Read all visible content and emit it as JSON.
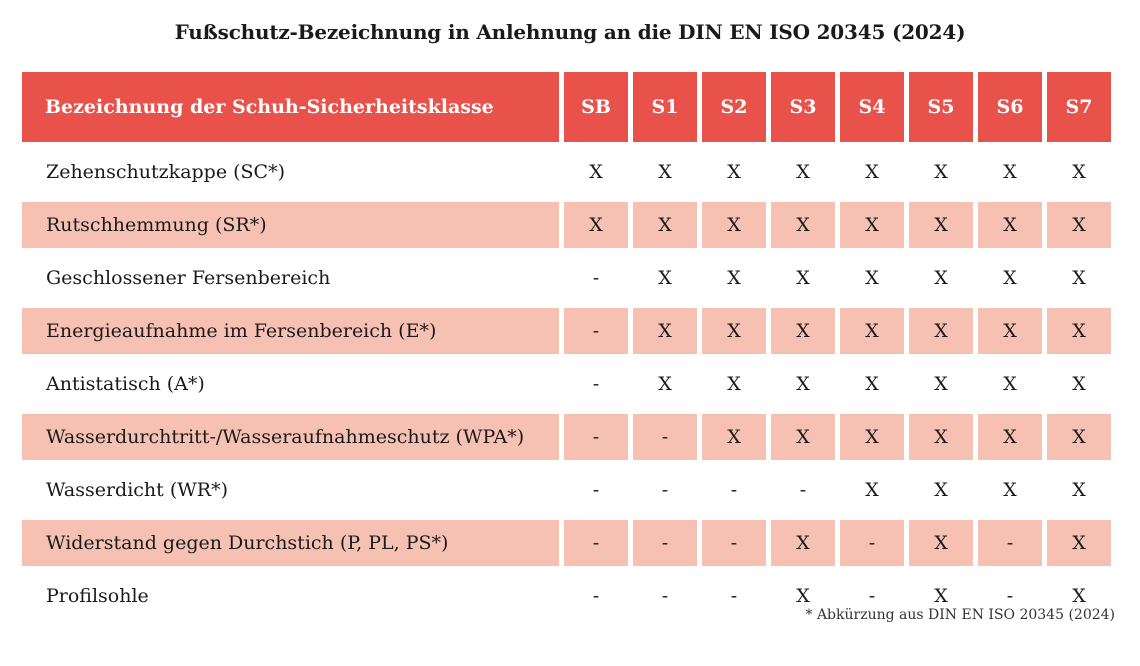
{
  "title": "Fußschutz-Bezeichnung in Anlehnung an die DIN EN ISO 20345 (2024)",
  "header": {
    "label": "Bezeichnung der Schuh-Sicherheitsklasse",
    "classes": [
      "SB",
      "S1",
      "S2",
      "S3",
      "S4",
      "S5",
      "S6",
      "S7"
    ]
  },
  "colors": {
    "header_bg": "#e9524a",
    "row_shade": "#f6c1b3"
  },
  "rows": [
    {
      "label": "Zehenschutzkappe (SC*)",
      "values": [
        "X",
        "X",
        "X",
        "X",
        "X",
        "X",
        "X",
        "X"
      ]
    },
    {
      "label": "Rutschhemmung (SR*)",
      "values": [
        "X",
        "X",
        "X",
        "X",
        "X",
        "X",
        "X",
        "X"
      ]
    },
    {
      "label": "Geschlossener Fersenbereich",
      "values": [
        "-",
        "X",
        "X",
        "X",
        "X",
        "X",
        "X",
        "X"
      ]
    },
    {
      "label": "Energieaufnahme im Fersenbereich (E*)",
      "values": [
        "-",
        "X",
        "X",
        "X",
        "X",
        "X",
        "X",
        "X"
      ]
    },
    {
      "label": "Antistatisch (A*)",
      "values": [
        "-",
        "X",
        "X",
        "X",
        "X",
        "X",
        "X",
        "X"
      ]
    },
    {
      "label": "Wasserdurchtritt-/Wasseraufnahmeschutz (WPA*)",
      "values": [
        "-",
        "-",
        "X",
        "X",
        "X",
        "X",
        "X",
        "X"
      ]
    },
    {
      "label": "Wasserdicht (WR*)",
      "values": [
        "-",
        "-",
        "-",
        "-",
        "X",
        "X",
        "X",
        "X"
      ]
    },
    {
      "label": "Widerstand gegen Durchstich (P, PL, PS*)",
      "values": [
        "-",
        "-",
        "-",
        "X",
        "-",
        "X",
        "-",
        "X"
      ]
    },
    {
      "label": "Profilsohle",
      "values": [
        "-",
        "-",
        "-",
        "X",
        "-",
        "X",
        "-",
        "X"
      ]
    }
  ],
  "footnote": "* Abkürzung aus DIN EN ISO 20345 (2024)"
}
